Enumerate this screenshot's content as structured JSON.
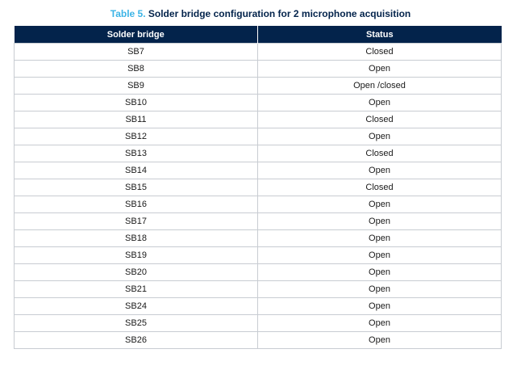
{
  "caption": {
    "tag": "Table 5.",
    "text": "Solder bridge configuration for 2 microphone acquisition"
  },
  "table": {
    "headers": [
      "Solder bridge",
      "Status"
    ],
    "rows": [
      [
        "SB7",
        "Closed"
      ],
      [
        "SB8",
        "Open"
      ],
      [
        "SB9",
        "Open /closed"
      ],
      [
        "SB10",
        "Open"
      ],
      [
        "SB11",
        "Closed"
      ],
      [
        "SB12",
        "Open"
      ],
      [
        "SB13",
        "Closed"
      ],
      [
        "SB14",
        "Open"
      ],
      [
        "SB15",
        "Closed"
      ],
      [
        "SB16",
        "Open"
      ],
      [
        "SB17",
        "Open"
      ],
      [
        "SB18",
        "Open"
      ],
      [
        "SB19",
        "Open"
      ],
      [
        "SB20",
        "Open"
      ],
      [
        "SB21",
        "Open"
      ],
      [
        "SB24",
        "Open"
      ],
      [
        "SB25",
        "Open"
      ],
      [
        "SB26",
        "Open"
      ]
    ]
  },
  "colors": {
    "header_bg": "#03234b",
    "caption_tag": "#3cb4e6",
    "caption_text": "#03234b",
    "grid": "#c8ccd2"
  }
}
